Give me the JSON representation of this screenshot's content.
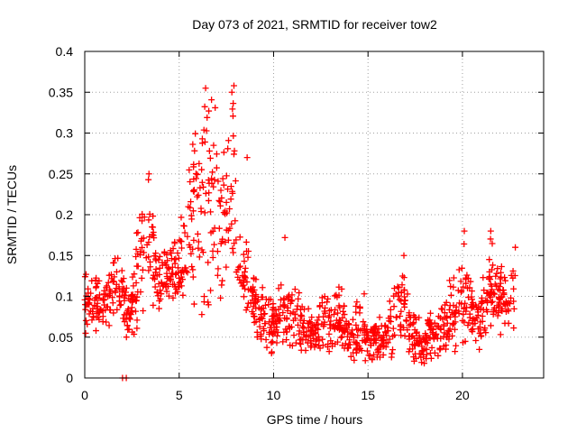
{
  "chart_data": {
    "type": "scatter",
    "title": "Day 073 of 2021, SRMTID for receiver tow2",
    "xlabel": "GPS time / hours",
    "ylabel": "SRMTID / TECUs",
    "xlim": [
      0,
      24.3
    ],
    "ylim": [
      0,
      0.4
    ],
    "xticks": [
      0,
      5,
      10,
      15,
      20
    ],
    "yticks": [
      0,
      0.05,
      0.1,
      0.15,
      0.2,
      0.25,
      0.3,
      0.35,
      0.4
    ],
    "xtick_labels": [
      "0",
      "5",
      "10",
      "15",
      "20"
    ],
    "ytick_labels": [
      "0",
      "0.05",
      "0.1",
      "0.15",
      "0.2",
      "0.25",
      "0.3",
      "0.35",
      "0.4"
    ],
    "grid": true,
    "series": [
      {
        "name": "SRMTID",
        "color": "#ff0000",
        "marker": "plus",
        "envelope_note": "approximate trend of the dense point cloud (data units)",
        "envelope": [
          [
            0.0,
            0.04,
            0.15
          ],
          [
            0.5,
            0.05,
            0.13
          ],
          [
            1.0,
            0.06,
            0.12
          ],
          [
            1.5,
            0.06,
            0.16
          ],
          [
            2.0,
            0.07,
            0.14
          ],
          [
            2.3,
            0.04,
            0.1
          ],
          [
            2.7,
            0.05,
            0.17
          ],
          [
            3.0,
            0.08,
            0.24
          ],
          [
            3.4,
            0.07,
            0.25
          ],
          [
            3.8,
            0.08,
            0.16
          ],
          [
            4.3,
            0.09,
            0.17
          ],
          [
            4.8,
            0.09,
            0.17
          ],
          [
            5.3,
            0.08,
            0.22
          ],
          [
            5.8,
            0.08,
            0.31
          ],
          [
            6.3,
            0.07,
            0.35
          ],
          [
            6.8,
            0.08,
            0.34
          ],
          [
            7.3,
            0.08,
            0.3
          ],
          [
            7.8,
            0.08,
            0.36
          ],
          [
            8.3,
            0.07,
            0.2
          ],
          [
            8.8,
            0.06,
            0.15
          ],
          [
            9.2,
            0.04,
            0.12
          ],
          [
            9.7,
            0.03,
            0.1
          ],
          [
            10.2,
            0.03,
            0.11
          ],
          [
            10.6,
            0.03,
            0.15
          ],
          [
            11.0,
            0.03,
            0.12
          ],
          [
            11.5,
            0.02,
            0.1
          ],
          [
            12.0,
            0.02,
            0.08
          ],
          [
            12.5,
            0.03,
            0.1
          ],
          [
            13.0,
            0.03,
            0.12
          ],
          [
            13.5,
            0.03,
            0.12
          ],
          [
            14.0,
            0.02,
            0.07
          ],
          [
            14.5,
            0.01,
            0.1
          ],
          [
            15.0,
            0.02,
            0.07
          ],
          [
            15.5,
            0.02,
            0.08
          ],
          [
            16.0,
            0.02,
            0.08
          ],
          [
            16.5,
            0.03,
            0.13
          ],
          [
            16.9,
            0.03,
            0.15
          ],
          [
            17.3,
            0.02,
            0.09
          ],
          [
            17.8,
            0.01,
            0.07
          ],
          [
            18.3,
            0.02,
            0.09
          ],
          [
            18.8,
            0.02,
            0.08
          ],
          [
            19.3,
            0.03,
            0.13
          ],
          [
            19.7,
            0.03,
            0.14
          ],
          [
            20.1,
            0.04,
            0.18
          ],
          [
            20.6,
            0.04,
            0.12
          ],
          [
            21.0,
            0.03,
            0.11
          ],
          [
            21.5,
            0.05,
            0.18
          ],
          [
            22.0,
            0.05,
            0.15
          ],
          [
            22.4,
            0.05,
            0.12
          ],
          [
            22.8,
            0.06,
            0.16
          ]
        ],
        "extra_points": [
          [
            2.0,
            0.0
          ],
          [
            2.2,
            0.0
          ],
          [
            7.9,
            0.358
          ],
          [
            6.4,
            0.355
          ],
          [
            3.4,
            0.25
          ],
          [
            10.6,
            0.172
          ],
          [
            20.1,
            0.18
          ],
          [
            21.5,
            0.18
          ],
          [
            22.8,
            0.16
          ],
          [
            16.9,
            0.15
          ],
          [
            14.8,
            0.103
          ],
          [
            8.6,
            0.27
          ]
        ]
      }
    ]
  }
}
